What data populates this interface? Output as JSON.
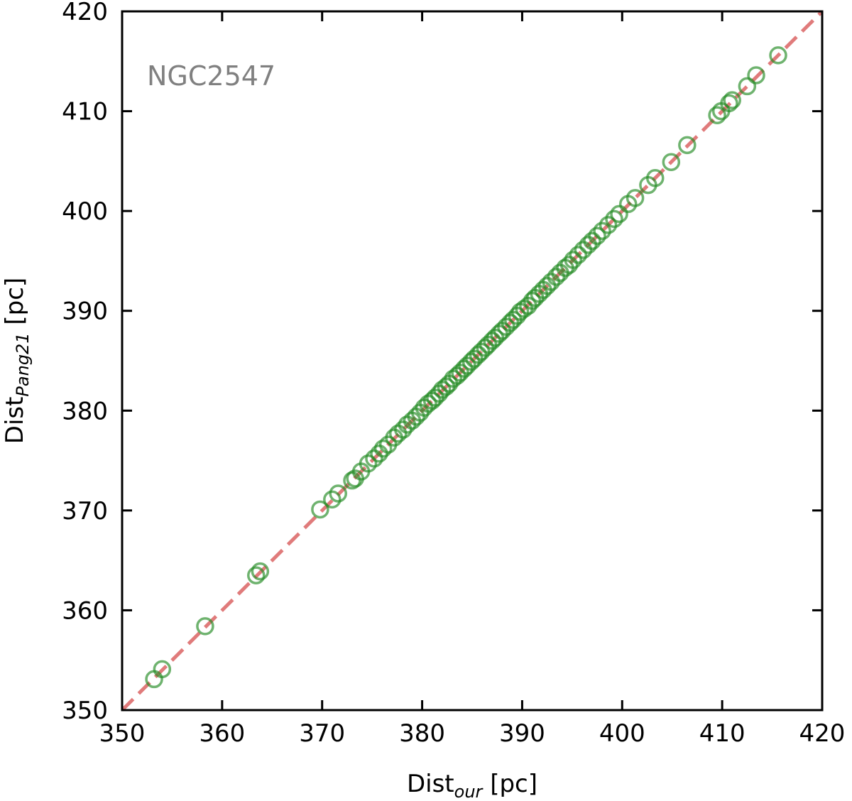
{
  "chart_data": {
    "type": "scatter",
    "xlabel": {
      "base": "Dist",
      "sub": "our",
      "unit": " [pc]"
    },
    "ylabel": {
      "base": "Dist",
      "sub": "Pang21",
      "unit": " [pc]"
    },
    "xlim": [
      350,
      420
    ],
    "ylim": [
      350,
      420
    ],
    "xticks": [
      "350",
      "360",
      "370",
      "380",
      "390",
      "400",
      "410",
      "420"
    ],
    "yticks": [
      "350",
      "360",
      "370",
      "380",
      "390",
      "400",
      "410",
      "420"
    ],
    "annotation": "NGC2547",
    "annotation_color": "#808080",
    "marker_color": "#228B22",
    "reference_line": {
      "from": [
        350,
        350
      ],
      "to": [
        420,
        420
      ],
      "style": "dashed",
      "color": "#e07b7b"
    },
    "grid": false,
    "series": [
      {
        "points": [
          [
            353.2,
            353.1
          ],
          [
            354.0,
            354.1
          ],
          [
            358.3,
            358.4
          ],
          [
            363.4,
            363.5
          ],
          [
            363.8,
            363.9
          ],
          [
            369.8,
            370.1
          ],
          [
            371.0,
            371.1
          ],
          [
            371.6,
            371.7
          ],
          [
            373.0,
            373.0
          ],
          [
            373.3,
            373.2
          ],
          [
            373.9,
            373.9
          ],
          [
            374.6,
            374.7
          ],
          [
            375.2,
            375.2
          ],
          [
            375.7,
            375.7
          ],
          [
            376.1,
            376.2
          ],
          [
            376.6,
            376.6
          ],
          [
            377.2,
            377.3
          ],
          [
            377.6,
            377.7
          ],
          [
            378.1,
            378.1
          ],
          [
            378.5,
            378.6
          ],
          [
            379.0,
            379.0
          ],
          [
            379.4,
            379.4
          ],
          [
            379.8,
            379.8
          ],
          [
            380.2,
            380.3
          ],
          [
            380.6,
            380.7
          ],
          [
            381.0,
            381.0
          ],
          [
            381.3,
            381.3
          ],
          [
            381.7,
            381.7
          ],
          [
            382.0,
            382.1
          ],
          [
            382.4,
            382.4
          ],
          [
            382.7,
            382.7
          ],
          [
            383.1,
            383.2
          ],
          [
            383.5,
            383.5
          ],
          [
            383.8,
            383.8
          ],
          [
            384.2,
            384.2
          ],
          [
            384.5,
            384.5
          ],
          [
            384.9,
            384.9
          ],
          [
            385.2,
            385.2
          ],
          [
            385.6,
            385.6
          ],
          [
            385.9,
            385.9
          ],
          [
            386.3,
            386.3
          ],
          [
            386.6,
            386.6
          ],
          [
            387.0,
            387.0
          ],
          [
            387.3,
            387.3
          ],
          [
            387.7,
            387.7
          ],
          [
            388.0,
            388.0
          ],
          [
            388.4,
            388.4
          ],
          [
            388.8,
            388.8
          ],
          [
            389.1,
            389.1
          ],
          [
            389.5,
            389.5
          ],
          [
            389.8,
            389.9
          ],
          [
            390.2,
            390.2
          ],
          [
            390.6,
            390.5
          ],
          [
            391.0,
            391.0
          ],
          [
            391.3,
            391.3
          ],
          [
            391.7,
            391.7
          ],
          [
            392.1,
            392.1
          ],
          [
            392.5,
            392.5
          ],
          [
            392.9,
            392.9
          ],
          [
            393.4,
            393.4
          ],
          [
            393.8,
            393.8
          ],
          [
            394.3,
            394.3
          ],
          [
            394.7,
            394.6
          ],
          [
            395.1,
            395.1
          ],
          [
            395.6,
            395.6
          ],
          [
            396.1,
            396.1
          ],
          [
            396.6,
            396.6
          ],
          [
            397.0,
            397.0
          ],
          [
            397.5,
            397.5
          ],
          [
            398.0,
            398.0
          ],
          [
            398.6,
            398.6
          ],
          [
            399.2,
            399.2
          ],
          [
            399.7,
            399.7
          ],
          [
            400.6,
            400.7
          ],
          [
            401.3,
            401.3
          ],
          [
            402.6,
            402.6
          ],
          [
            403.3,
            403.3
          ],
          [
            404.9,
            404.9
          ],
          [
            406.5,
            406.6
          ],
          [
            409.5,
            409.6
          ],
          [
            409.9,
            410.0
          ],
          [
            410.7,
            410.8
          ],
          [
            411.0,
            411.1
          ],
          [
            412.5,
            412.5
          ],
          [
            413.4,
            413.6
          ],
          [
            415.6,
            415.6
          ]
        ]
      }
    ]
  }
}
